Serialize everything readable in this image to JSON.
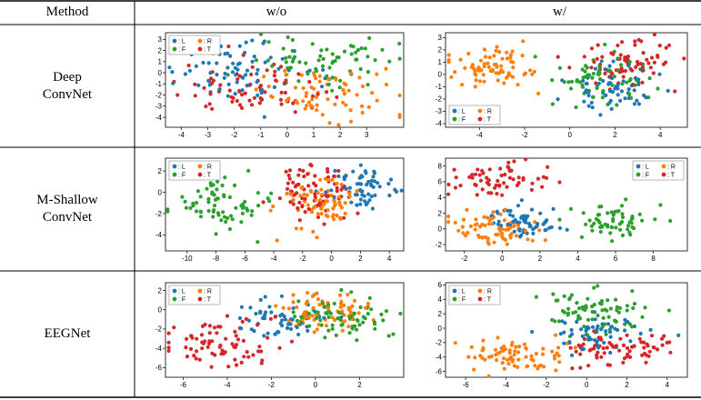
{
  "table": {
    "header": {
      "method": "Method",
      "without": "w/o",
      "with": "w/"
    },
    "rows": [
      {
        "name_line1": "Deep",
        "name_line2": "ConvNet"
      },
      {
        "name_line1": "M-Shallow",
        "name_line2": "ConvNet"
      },
      {
        "name_line1": "EEGNet",
        "name_line2": ""
      }
    ]
  },
  "colors": {
    "L": "#1f77b4",
    "R": "#ff7f0e",
    "F": "#2ca02c",
    "T": "#d62728"
  },
  "chart_data": [
    {
      "type": "scatter",
      "panel": "Deep ConvNet w/o",
      "legend": "top-left",
      "xlim": [
        -4.6,
        4.4
      ],
      "ylim": [
        -4.9,
        3.6
      ],
      "xticks": [
        -4,
        -3,
        -2,
        -1,
        0,
        1,
        2,
        3
      ],
      "yticks": [
        -4,
        -3,
        -2,
        -1,
        0,
        1,
        2,
        3
      ],
      "series": [
        {
          "name": ": L",
          "cluster": {
            "cx": -1.5,
            "cy": 0.0,
            "sx": 1.4,
            "sy": 1.3,
            "n": 75
          }
        },
        {
          "name": ": R",
          "cluster": {
            "cx": 1.5,
            "cy": -2.0,
            "sx": 1.3,
            "sy": 1.1,
            "n": 70
          }
        },
        {
          "name": ": F",
          "cluster": {
            "cx": 1.5,
            "cy": 1.2,
            "sx": 1.3,
            "sy": 1.1,
            "n": 70
          }
        },
        {
          "name": ": T",
          "cluster": {
            "cx": -1.5,
            "cy": -1.2,
            "sx": 1.3,
            "sy": 1.2,
            "n": 70
          }
        }
      ]
    },
    {
      "type": "scatter",
      "panel": "Deep ConvNet w/",
      "legend": "bottom-left",
      "xlim": [
        -5.5,
        5.2
      ],
      "ylim": [
        -4.3,
        3.4
      ],
      "xticks": [
        -4,
        -2,
        0,
        2,
        4
      ],
      "yticks": [
        -4,
        -3,
        -2,
        -1,
        0,
        1,
        2,
        3
      ],
      "series": [
        {
          "name": ": L",
          "cluster": {
            "cx": 2.0,
            "cy": -1.0,
            "sx": 1.0,
            "sy": 1.1,
            "n": 65
          }
        },
        {
          "name": ": R",
          "cluster": {
            "cx": -3.5,
            "cy": 0.5,
            "sx": 1.0,
            "sy": 1.0,
            "n": 75
          }
        },
        {
          "name": ": F",
          "cluster": {
            "cx": 1.5,
            "cy": 0.0,
            "sx": 1.2,
            "sy": 1.1,
            "n": 70
          }
        },
        {
          "name": ": T",
          "cluster": {
            "cx": 2.5,
            "cy": 1.0,
            "sx": 1.1,
            "sy": 1.0,
            "n": 70
          }
        }
      ]
    },
    {
      "type": "scatter",
      "panel": "M-Shallow ConvNet w/o",
      "legend": "top-left",
      "xlim": [
        -11.5,
        5.0
      ],
      "ylim": [
        -5.5,
        3.2
      ],
      "xticks": [
        -10,
        -8,
        -6,
        -4,
        -2,
        0,
        2,
        4
      ],
      "yticks": [
        -4,
        -2,
        0,
        2
      ],
      "series": [
        {
          "name": ": L",
          "cluster": {
            "cx": 2.0,
            "cy": 0.5,
            "sx": 1.2,
            "sy": 1.1,
            "n": 60
          }
        },
        {
          "name": ": R",
          "cluster": {
            "cx": -0.5,
            "cy": -1.0,
            "sx": 1.3,
            "sy": 1.4,
            "n": 75
          }
        },
        {
          "name": ": F",
          "cluster": {
            "cx": -7.5,
            "cy": -1.0,
            "sx": 1.4,
            "sy": 1.2,
            "n": 70
          }
        },
        {
          "name": ": T",
          "cluster": {
            "cx": -1.0,
            "cy": 0.0,
            "sx": 1.3,
            "sy": 1.2,
            "n": 75
          }
        }
      ]
    },
    {
      "type": "scatter",
      "panel": "M-Shallow ConvNet w/",
      "legend": "top-right",
      "xlim": [
        -3.0,
        9.8
      ],
      "ylim": [
        -2.8,
        9.0
      ],
      "xticks": [
        -2,
        0,
        2,
        4,
        6,
        8
      ],
      "yticks": [
        -2,
        0,
        2,
        4,
        6,
        8
      ],
      "series": [
        {
          "name": ": L",
          "cluster": {
            "cx": 1.0,
            "cy": 1.0,
            "sx": 1.0,
            "sy": 1.0,
            "n": 65
          }
        },
        {
          "name": ": R",
          "cluster": {
            "cx": -0.5,
            "cy": 0.0,
            "sx": 1.1,
            "sy": 1.0,
            "n": 70
          }
        },
        {
          "name": ": F",
          "cluster": {
            "cx": 6.0,
            "cy": 1.0,
            "sx": 1.3,
            "sy": 1.1,
            "n": 60
          }
        },
        {
          "name": ": T",
          "cluster": {
            "cx": 0.0,
            "cy": 6.3,
            "sx": 1.3,
            "sy": 1.0,
            "n": 60
          }
        }
      ]
    },
    {
      "type": "scatter",
      "panel": "EEGNet w/o",
      "legend": "top-left",
      "xlim": [
        -6.8,
        4.0
      ],
      "ylim": [
        -7.0,
        2.8
      ],
      "xticks": [
        -6,
        -4,
        -2,
        0,
        2
      ],
      "yticks": [
        -6,
        -4,
        -2,
        0,
        2
      ],
      "series": [
        {
          "name": ": L",
          "cluster": {
            "cx": -1.5,
            "cy": -1.0,
            "sx": 1.1,
            "sy": 0.9,
            "n": 55
          }
        },
        {
          "name": ": R",
          "cluster": {
            "cx": 0.5,
            "cy": -0.2,
            "sx": 1.1,
            "sy": 1.0,
            "n": 75
          }
        },
        {
          "name": ": F",
          "cluster": {
            "cx": 1.0,
            "cy": -0.8,
            "sx": 1.2,
            "sy": 1.0,
            "n": 75
          }
        },
        {
          "name": ": T",
          "cluster": {
            "cx": -4.0,
            "cy": -3.5,
            "sx": 1.3,
            "sy": 1.3,
            "n": 75
          }
        }
      ]
    },
    {
      "type": "scatter",
      "panel": "EEGNet w/",
      "legend": "top-left",
      "xlim": [
        -7.0,
        5.0
      ],
      "ylim": [
        -6.8,
        6.3
      ],
      "xticks": [
        -6,
        -4,
        -2,
        0,
        2,
        4
      ],
      "yticks": [
        -6,
        -4,
        -2,
        0,
        2,
        4,
        6
      ],
      "series": [
        {
          "name": ": L",
          "cluster": {
            "cx": 0.5,
            "cy": -1.0,
            "sx": 1.2,
            "sy": 1.2,
            "n": 60
          }
        },
        {
          "name": ": R",
          "cluster": {
            "cx": -3.5,
            "cy": -3.5,
            "sx": 1.4,
            "sy": 1.2,
            "n": 75
          }
        },
        {
          "name": ": F",
          "cluster": {
            "cx": 0.5,
            "cy": 2.5,
            "sx": 1.2,
            "sy": 1.6,
            "n": 75
          }
        },
        {
          "name": ": T",
          "cluster": {
            "cx": 1.5,
            "cy": -2.5,
            "sx": 1.4,
            "sy": 1.2,
            "n": 70
          }
        }
      ]
    }
  ]
}
